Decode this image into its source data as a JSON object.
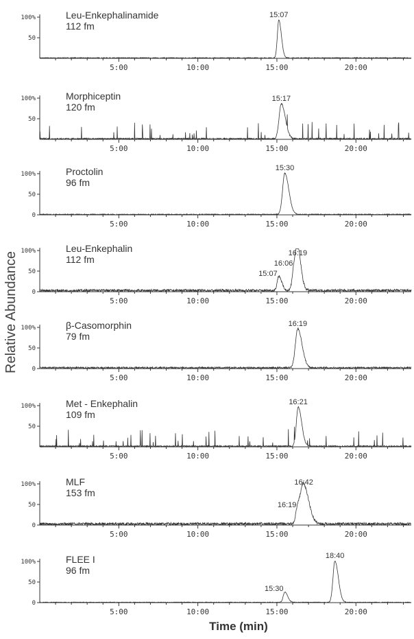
{
  "chart_data": {
    "type": "line",
    "ylabel": "Relative Abundance",
    "xlabel": "Time (min)",
    "xlim": [
      0,
      23.5
    ],
    "ylim": [
      0,
      100
    ],
    "x_ticks": [
      "5:00",
      "10:00",
      "15:00",
      "20:00"
    ],
    "x_tick_values": [
      5,
      10,
      15,
      20
    ],
    "panels": [
      {
        "name": "Leu-Enkephalinamide",
        "amount": "112 fm",
        "y_ticks": [
          "100%",
          "50"
        ],
        "y_tick_values": [
          100,
          50
        ],
        "noise": 2,
        "spikes": 0,
        "peaks": [
          {
            "label": "15:07",
            "x": 15.12,
            "y": 92,
            "width": 0.09
          }
        ]
      },
      {
        "name": "Morphiceptin",
        "amount": "120 fm",
        "y_ticks": [
          "100%",
          "50"
        ],
        "y_tick_values": [
          100,
          50
        ],
        "noise": 3,
        "spikes": 40,
        "peaks": [
          {
            "label": "15:17",
            "x": 15.28,
            "y": 85,
            "width": 0.14
          }
        ]
      },
      {
        "name": "Proctolin",
        "amount": "96 fm",
        "y_ticks": [
          "100%",
          "50",
          "0"
        ],
        "y_tick_values": [
          100,
          50,
          0
        ],
        "noise": 2,
        "spikes": 0,
        "peaks": [
          {
            "label": "15:30",
            "x": 15.5,
            "y": 100,
            "width": 0.14
          }
        ]
      },
      {
        "name": "Leu-Enkephalin",
        "amount": "112 fm",
        "y_ticks": [
          "100%",
          "50",
          "0"
        ],
        "y_tick_values": [
          100,
          50,
          0
        ],
        "noise": 6,
        "spikes": 0,
        "peaks": [
          {
            "label": "15:07",
            "x": 15.12,
            "y": 35,
            "width": 0.1
          },
          {
            "label": "16:06",
            "x": 16.1,
            "y": 60,
            "width": 0.12
          },
          {
            "label": "16:19",
            "x": 16.32,
            "y": 80,
            "width": 0.12
          }
        ]
      },
      {
        "name": "β-Casomorphin",
        "amount": "79 fm",
        "y_ticks": [
          "100%",
          "50",
          "0"
        ],
        "y_tick_values": [
          100,
          50,
          0
        ],
        "noise": 4,
        "spikes": 0,
        "peaks": [
          {
            "label": "16:19",
            "x": 16.32,
            "y": 95,
            "width": 0.15
          }
        ]
      },
      {
        "name": "Met - Enkephalin",
        "amount": "109 fm",
        "y_ticks": [
          "100%",
          "50"
        ],
        "y_tick_values": [
          100,
          50
        ],
        "noise": 3,
        "spikes": 40,
        "peaks": [
          {
            "label": "16:21",
            "x": 16.35,
            "y": 95,
            "width": 0.12
          }
        ]
      },
      {
        "name": "MLF",
        "amount": "153 fm",
        "y_ticks": [
          "100%",
          "50",
          "0"
        ],
        "y_tick_values": [
          100,
          50,
          0
        ],
        "noise": 6,
        "spikes": 0,
        "peaks": [
          {
            "label": "16:19",
            "x": 16.32,
            "y": 40,
            "width": 0.12
          },
          {
            "label": "16:42",
            "x": 16.7,
            "y": 90,
            "width": 0.18
          }
        ]
      },
      {
        "name": "FLEE I",
        "amount": "96 fm",
        "y_ticks": [
          "100%",
          "50",
          "0"
        ],
        "y_tick_values": [
          100,
          50,
          0
        ],
        "noise": 1.5,
        "spikes": 0,
        "peaks": [
          {
            "label": "15:30",
            "x": 15.5,
            "y": 25,
            "width": 0.1
          },
          {
            "label": "18:40",
            "x": 18.67,
            "y": 100,
            "width": 0.12
          }
        ]
      }
    ]
  }
}
